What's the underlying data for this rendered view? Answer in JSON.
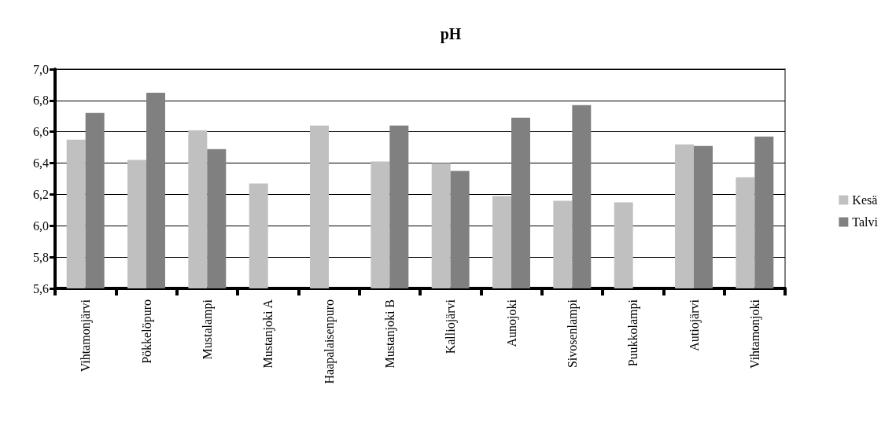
{
  "chart_data": {
    "type": "bar",
    "title": "pH",
    "categories": [
      "Vihtamonjärvi",
      "Pökkelöpuro",
      "Mustalampi",
      "Mustanjoki A",
      "Haapalaisenpuro",
      "Mustanjoki B",
      "Kalliojärvi",
      "Aunojoki",
      "Sivosenlampi",
      "Puukkolampi",
      "Autiojärvi",
      "Vihtamonjoki"
    ],
    "series": [
      {
        "name": "Kesä",
        "color": "#c0c0c0",
        "values": [
          6.55,
          6.42,
          6.61,
          6.27,
          6.64,
          6.41,
          6.4,
          6.19,
          6.16,
          6.15,
          6.52,
          6.31
        ]
      },
      {
        "name": "Talvi",
        "color": "#808080",
        "values": [
          6.72,
          6.85,
          6.49,
          null,
          null,
          6.64,
          6.35,
          6.69,
          6.77,
          null,
          6.51,
          6.57
        ]
      }
    ],
    "ylim": [
      5.6,
      7.0
    ],
    "yticks": [
      {
        "value": 5.6,
        "label": "5,6"
      },
      {
        "value": 5.8,
        "label": "5,8"
      },
      {
        "value": 6.0,
        "label": "6,0"
      },
      {
        "value": 6.2,
        "label": "6,2"
      },
      {
        "value": 6.4,
        "label": "6,4"
      },
      {
        "value": 6.6,
        "label": "6,6"
      },
      {
        "value": 6.8,
        "label": "6,8"
      },
      {
        "value": 7.0,
        "label": "7,0"
      }
    ],
    "grid": "y",
    "legend": "right"
  }
}
